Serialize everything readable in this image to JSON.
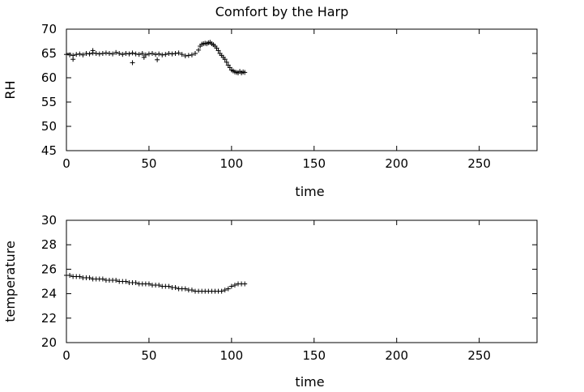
{
  "chart_data": {
    "title": "Comfort by the Harp",
    "panels": [
      {
        "type": "scatter",
        "marker": "plus",
        "xlabel": "time",
        "ylabel": "RH",
        "xlim": [
          0,
          285
        ],
        "ylim": [
          45,
          70
        ],
        "xticks": [
          "0",
          "50",
          "100",
          "150",
          "200",
          "250"
        ],
        "yticks": [
          "45",
          "50",
          "55",
          "60",
          "65",
          "70"
        ],
        "grid": false,
        "series": [
          {
            "x": [
              0,
              2,
              4,
              6,
              8,
              10,
              12,
              14,
              16,
              18,
              20,
              22,
              24,
              26,
              28,
              30,
              32,
              34,
              36,
              38,
              40,
              42,
              44,
              46,
              48,
              50,
              52,
              54,
              56,
              58,
              60,
              62,
              64,
              66,
              68,
              70,
              72,
              74,
              76,
              78,
              80,
              81,
              82,
              83,
              84,
              85,
              86,
              87,
              88,
              89,
              90,
              91,
              92,
              93,
              94,
              95,
              96,
              97,
              98,
              99,
              100,
              101,
              102,
              103,
              104,
              105,
              106,
              107,
              108,
              4,
              16,
              40,
              47,
              55
            ],
            "y": [
              64.8,
              64.7,
              64.6,
              64.8,
              64.9,
              64.7,
              65.0,
              64.9,
              65.1,
              65.0,
              64.9,
              65.0,
              65.1,
              65.0,
              64.9,
              65.2,
              65.0,
              64.8,
              65.0,
              64.9,
              65.1,
              64.9,
              64.8,
              65.0,
              64.7,
              64.9,
              65.0,
              64.8,
              64.9,
              64.7,
              64.8,
              65.0,
              64.9,
              65.0,
              65.1,
              64.8,
              64.5,
              64.6,
              64.7,
              65.0,
              65.7,
              66.5,
              66.9,
              67.0,
              67.1,
              67.0,
              67.2,
              67.3,
              67.0,
              66.8,
              66.5,
              66.1,
              65.6,
              65.0,
              64.6,
              64.2,
              63.8,
              63.2,
              62.6,
              62.1,
              61.6,
              61.4,
              61.2,
              61.1,
              61.0,
              61.3,
              61.0,
              61.2,
              61.1,
              63.8,
              65.6,
              63.1,
              64.2,
              63.7
            ]
          }
        ]
      },
      {
        "type": "scatter",
        "marker": "plus",
        "xlabel": "time",
        "ylabel": "temperature",
        "xlim": [
          0,
          285
        ],
        "ylim": [
          20,
          30
        ],
        "xticks": [
          "0",
          "50",
          "100",
          "150",
          "200",
          "250"
        ],
        "yticks": [
          "20",
          "22",
          "24",
          "26",
          "28",
          "30"
        ],
        "grid": false,
        "series": [
          {
            "x": [
              0,
              2,
              4,
              6,
              8,
              10,
              12,
              14,
              16,
              18,
              20,
              22,
              24,
              26,
              28,
              30,
              32,
              34,
              36,
              38,
              40,
              42,
              44,
              46,
              48,
              50,
              52,
              54,
              56,
              58,
              60,
              62,
              64,
              66,
              68,
              70,
              72,
              74,
              76,
              78,
              80,
              82,
              84,
              86,
              88,
              90,
              92,
              94,
              96,
              98,
              100,
              102,
              104,
              106,
              108
            ],
            "y": [
              25.5,
              25.5,
              25.4,
              25.4,
              25.4,
              25.3,
              25.3,
              25.3,
              25.2,
              25.2,
              25.2,
              25.2,
              25.1,
              25.1,
              25.1,
              25.1,
              25.0,
              25.0,
              25.0,
              24.9,
              24.9,
              24.9,
              24.8,
              24.8,
              24.8,
              24.8,
              24.7,
              24.7,
              24.7,
              24.6,
              24.6,
              24.6,
              24.5,
              24.5,
              24.4,
              24.4,
              24.4,
              24.3,
              24.3,
              24.2,
              24.2,
              24.2,
              24.2,
              24.2,
              24.2,
              24.2,
              24.2,
              24.2,
              24.3,
              24.4,
              24.6,
              24.7,
              24.8,
              24.8,
              24.8
            ]
          }
        ]
      }
    ]
  }
}
